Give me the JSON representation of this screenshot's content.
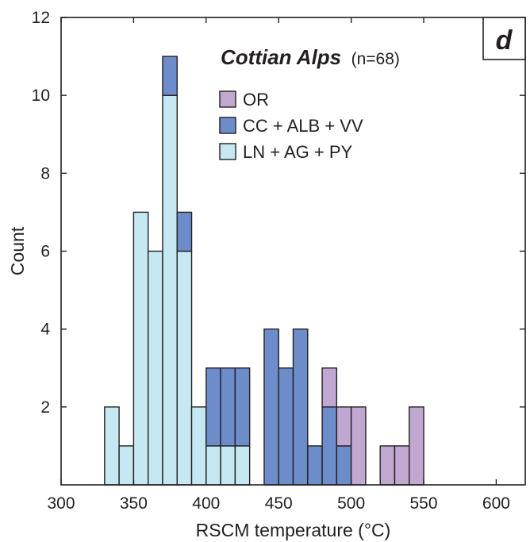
{
  "chart_data": {
    "type": "bar",
    "stacked": true,
    "panel_label": "d",
    "title": "Cottian Alps",
    "subtitle": "(n=68)",
    "xlabel": "RSCM temperature (°C)",
    "ylabel": "Count",
    "xlim": [
      300,
      620
    ],
    "ylim": [
      0,
      12
    ],
    "xticks": [
      300,
      350,
      400,
      450,
      500,
      550,
      600
    ],
    "yticks": [
      2,
      4,
      6,
      8,
      10,
      12
    ],
    "bin_width": 10,
    "bin_starts": [
      330,
      340,
      350,
      360,
      370,
      380,
      390,
      400,
      410,
      420,
      440,
      450,
      460,
      470,
      480,
      490,
      500,
      520,
      530,
      540
    ],
    "series": [
      {
        "name": "LN + AG + PY",
        "color": "#c5e8f2",
        "values": [
          2,
          1,
          7,
          6,
          10,
          6,
          2,
          1,
          1,
          1,
          0,
          0,
          0,
          0,
          0,
          0,
          0,
          0,
          0,
          0
        ]
      },
      {
        "name": "CC + ALB + VV",
        "color": "#6d8cca",
        "values": [
          0,
          0,
          0,
          0,
          1,
          1,
          0,
          2,
          2,
          2,
          4,
          3,
          4,
          1,
          2,
          1,
          0,
          0,
          0,
          0
        ]
      },
      {
        "name": "OR",
        "color": "#c0a8d0",
        "values": [
          0,
          0,
          0,
          0,
          0,
          0,
          0,
          0,
          0,
          0,
          0,
          0,
          0,
          0,
          1,
          1,
          2,
          1,
          1,
          2
        ]
      }
    ],
    "legend": {
      "position": "top-right",
      "order": [
        "OR",
        "CC + ALB + VV",
        "LN + AG + PY"
      ]
    },
    "grid": false
  }
}
